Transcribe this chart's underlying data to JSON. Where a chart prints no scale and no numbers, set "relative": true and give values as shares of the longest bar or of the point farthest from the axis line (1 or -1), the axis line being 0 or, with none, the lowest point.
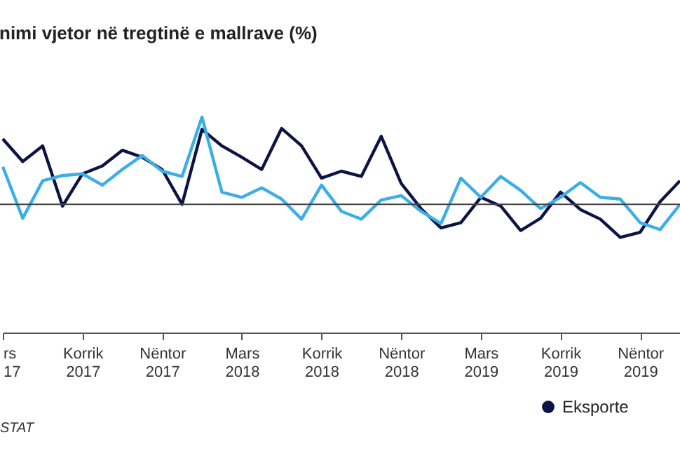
{
  "chart_data": {
    "type": "line",
    "title": "nimi vjetor në tregtinë e mallrave (%)",
    "relative": true,
    "categories": [
      "rs 17",
      null,
      null,
      null,
      "Korrik 2017",
      null,
      null,
      null,
      "Nëntor 2017",
      null,
      null,
      null,
      "Mars 2018",
      null,
      null,
      null,
      "Korrik 2018",
      null,
      null,
      null,
      "Nëntor 2018",
      null,
      null,
      null,
      "Mars 2019",
      null,
      null,
      null,
      "Korrik 2019",
      null,
      null,
      null,
      "Nëntor 2019",
      null,
      null
    ],
    "series": [
      {
        "name": "Eksporte",
        "color": "#0d1445",
        "values": [
          0.75,
          0.49,
          0.67,
          -0.02,
          0.35,
          0.44,
          0.62,
          0.54,
          0.4,
          0,
          0.86,
          0.67,
          0.54,
          0.4,
          0.87,
          0.67,
          0.3,
          0.38,
          0.32,
          0.78,
          0.24,
          -0.05,
          -0.27,
          -0.21,
          0.08,
          -0.02,
          -0.3,
          -0.16,
          0.14,
          -0.06,
          -0.17,
          -0.38,
          -0.32,
          0.03,
          0.27
        ]
      },
      {
        "color": "#3aaee8",
        "values": [
          0.43,
          -0.16,
          0.27,
          0.33,
          0.35,
          0.22,
          0.4,
          0.56,
          0.38,
          0.32,
          1,
          0.14,
          0.08,
          0.19,
          0.06,
          -0.17,
          0.22,
          -0.08,
          -0.17,
          0.05,
          0.1,
          -0.08,
          -0.22,
          0.3,
          0.08,
          0.32,
          0.16,
          -0.05,
          0.08,
          0.25,
          0.08,
          0.06,
          -0.21,
          -0.29,
          0
        ]
      }
    ],
    "ref_lines": [
      {
        "axis": "y",
        "value": 0
      }
    ],
    "legend": "bottom right",
    "marker": "none",
    "line_style": "solid",
    "annotations": [
      "STAT"
    ]
  }
}
